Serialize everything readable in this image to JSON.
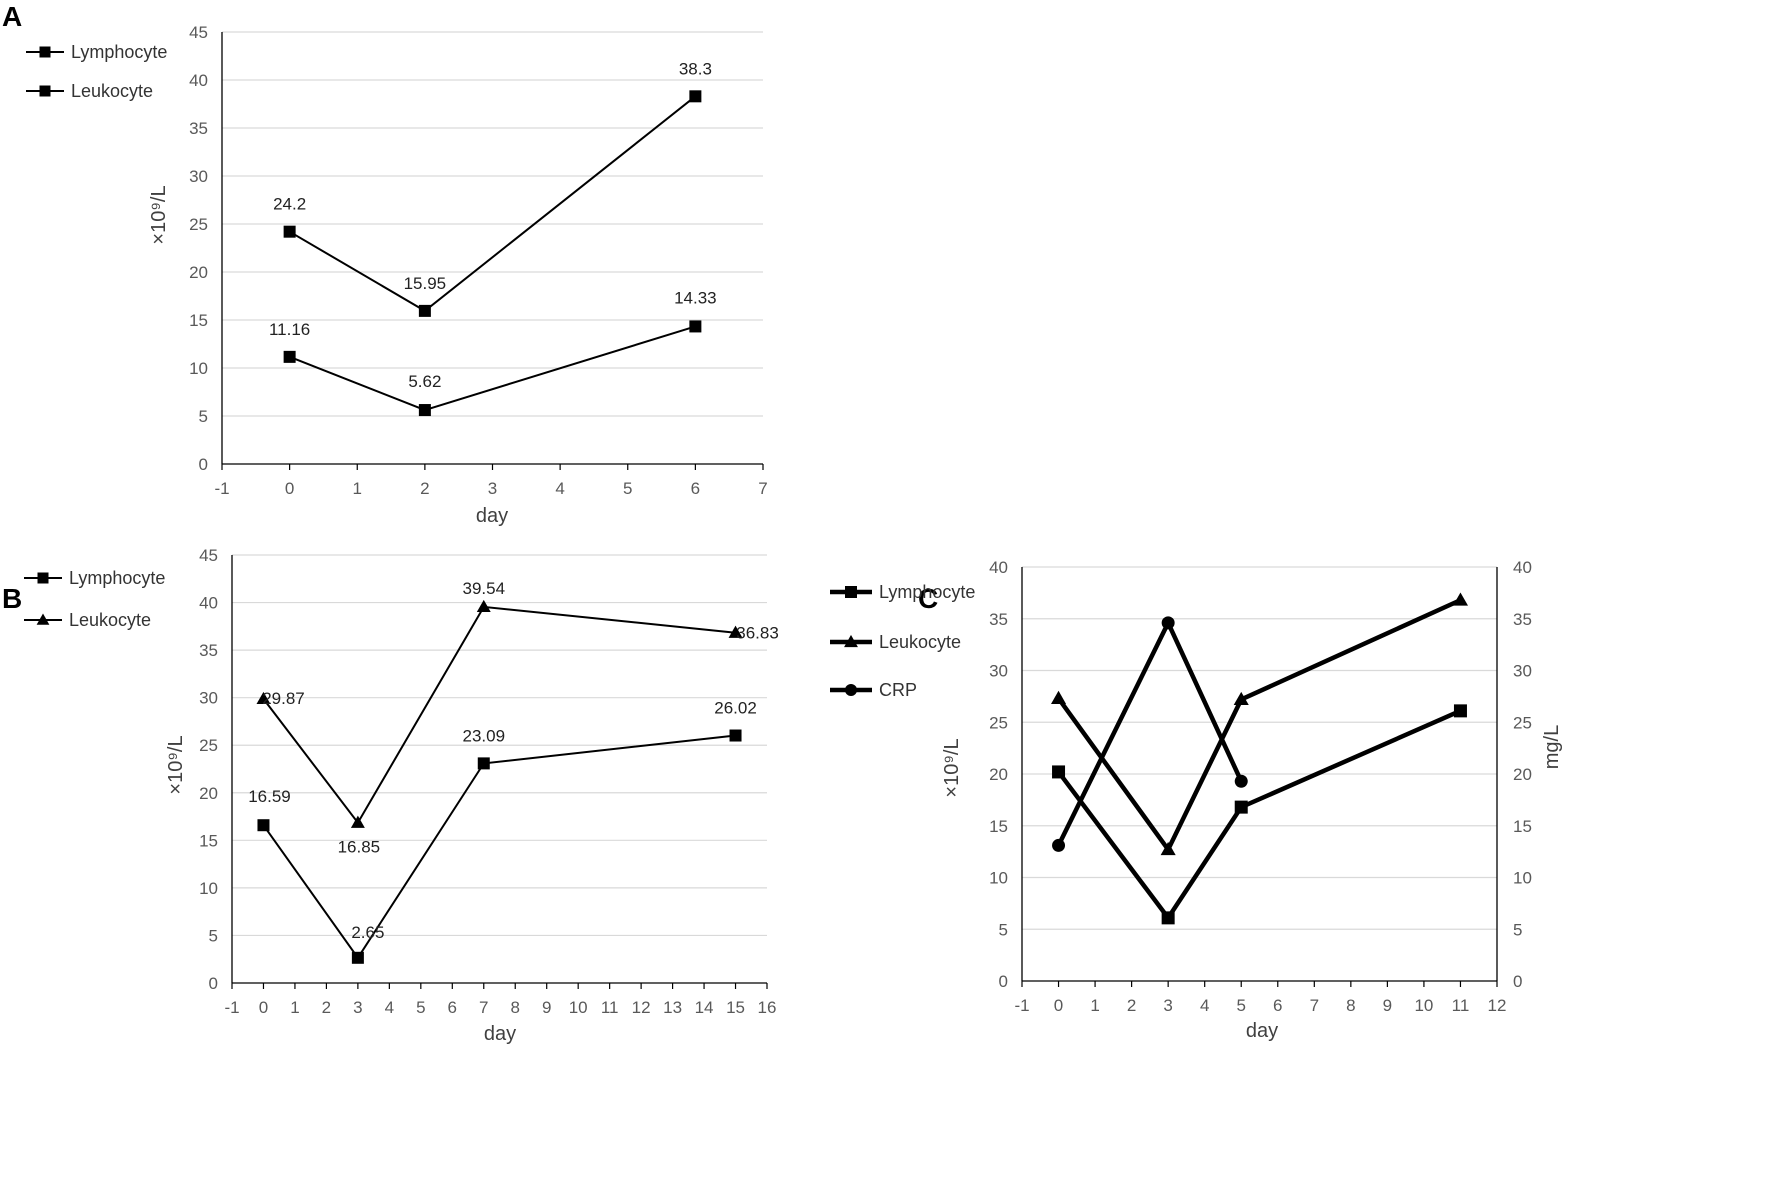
{
  "panels": {
    "A": {
      "letter": "A"
    },
    "B": {
      "letter": "B"
    },
    "C": {
      "letter": "C"
    }
  },
  "chart_data": [
    {
      "panel": "A",
      "type": "line",
      "xlabel": "day",
      "ylabel": "×10⁹/L",
      "xlim": [
        -1,
        7
      ],
      "ylim": [
        0,
        45
      ],
      "xticks": [
        -1,
        0,
        1,
        2,
        3,
        4,
        5,
        6,
        7
      ],
      "yticks": [
        0,
        5,
        10,
        15,
        20,
        25,
        30,
        35,
        40,
        45
      ],
      "grid": true,
      "legend_position": "top-left",
      "series": [
        {
          "name": "Lymphocyte",
          "marker": "square",
          "x": [
            0,
            2,
            6
          ],
          "values": [
            11.16,
            5.62,
            14.33
          ],
          "labels": [
            "11.16",
            "5.62",
            "14.33"
          ]
        },
        {
          "name": "Leukocyte",
          "marker": "square",
          "x": [
            0,
            2,
            6
          ],
          "values": [
            24.2,
            15.95,
            38.3
          ],
          "labels": [
            "24.2",
            "15.95",
            "38.3"
          ]
        }
      ]
    },
    {
      "panel": "B",
      "type": "line",
      "xlabel": "day",
      "ylabel": "×10⁹/L",
      "xlim": [
        -1,
        16
      ],
      "ylim": [
        0,
        45
      ],
      "xticks": [
        -1,
        0,
        1,
        2,
        3,
        4,
        5,
        6,
        7,
        8,
        9,
        10,
        11,
        12,
        13,
        14,
        15,
        16
      ],
      "yticks": [
        0,
        5,
        10,
        15,
        20,
        25,
        30,
        35,
        40,
        45
      ],
      "grid": true,
      "legend_position": "top-left",
      "series": [
        {
          "name": "Lymphocyte",
          "marker": "square",
          "x": [
            0,
            3,
            7,
            15
          ],
          "values": [
            16.59,
            2.65,
            23.09,
            26.02
          ],
          "labels": [
            "16.59",
            "2.65",
            "23.09",
            "26.02"
          ]
        },
        {
          "name": "Leukocyte",
          "marker": "triangle",
          "x": [
            0,
            3,
            7,
            15
          ],
          "values": [
            29.87,
            16.85,
            39.54,
            36.83
          ],
          "labels": [
            "29.87",
            "16.85",
            "39.54",
            "36.83"
          ]
        }
      ]
    },
    {
      "panel": "C",
      "type": "line",
      "xlabel": "day",
      "ylabel": "×10⁹/L",
      "y2label": "mg/L",
      "xlim": [
        -1,
        12
      ],
      "ylim": [
        0,
        40
      ],
      "y2lim": [
        0,
        40
      ],
      "xticks": [
        -1,
        0,
        1,
        2,
        3,
        4,
        5,
        6,
        7,
        8,
        9,
        10,
        11,
        12
      ],
      "yticks": [
        0,
        5,
        10,
        15,
        20,
        25,
        30,
        35,
        40
      ],
      "grid": true,
      "legend_position": "left",
      "series": [
        {
          "name": "Lymphocyte",
          "marker": "square",
          "axis": "left",
          "x": [
            0,
            3,
            5,
            11
          ],
          "values": [
            20.2,
            6.1,
            16.8,
            26.1
          ]
        },
        {
          "name": "Leukocyte",
          "marker": "triangle",
          "axis": "left",
          "x": [
            0,
            3,
            5,
            11
          ],
          "values": [
            27.3,
            12.7,
            27.2,
            36.8
          ]
        },
        {
          "name": "CRP",
          "marker": "circle",
          "axis": "right",
          "x": [
            0,
            3,
            5
          ],
          "values": [
            13.1,
            34.6,
            19.3
          ]
        }
      ]
    }
  ]
}
